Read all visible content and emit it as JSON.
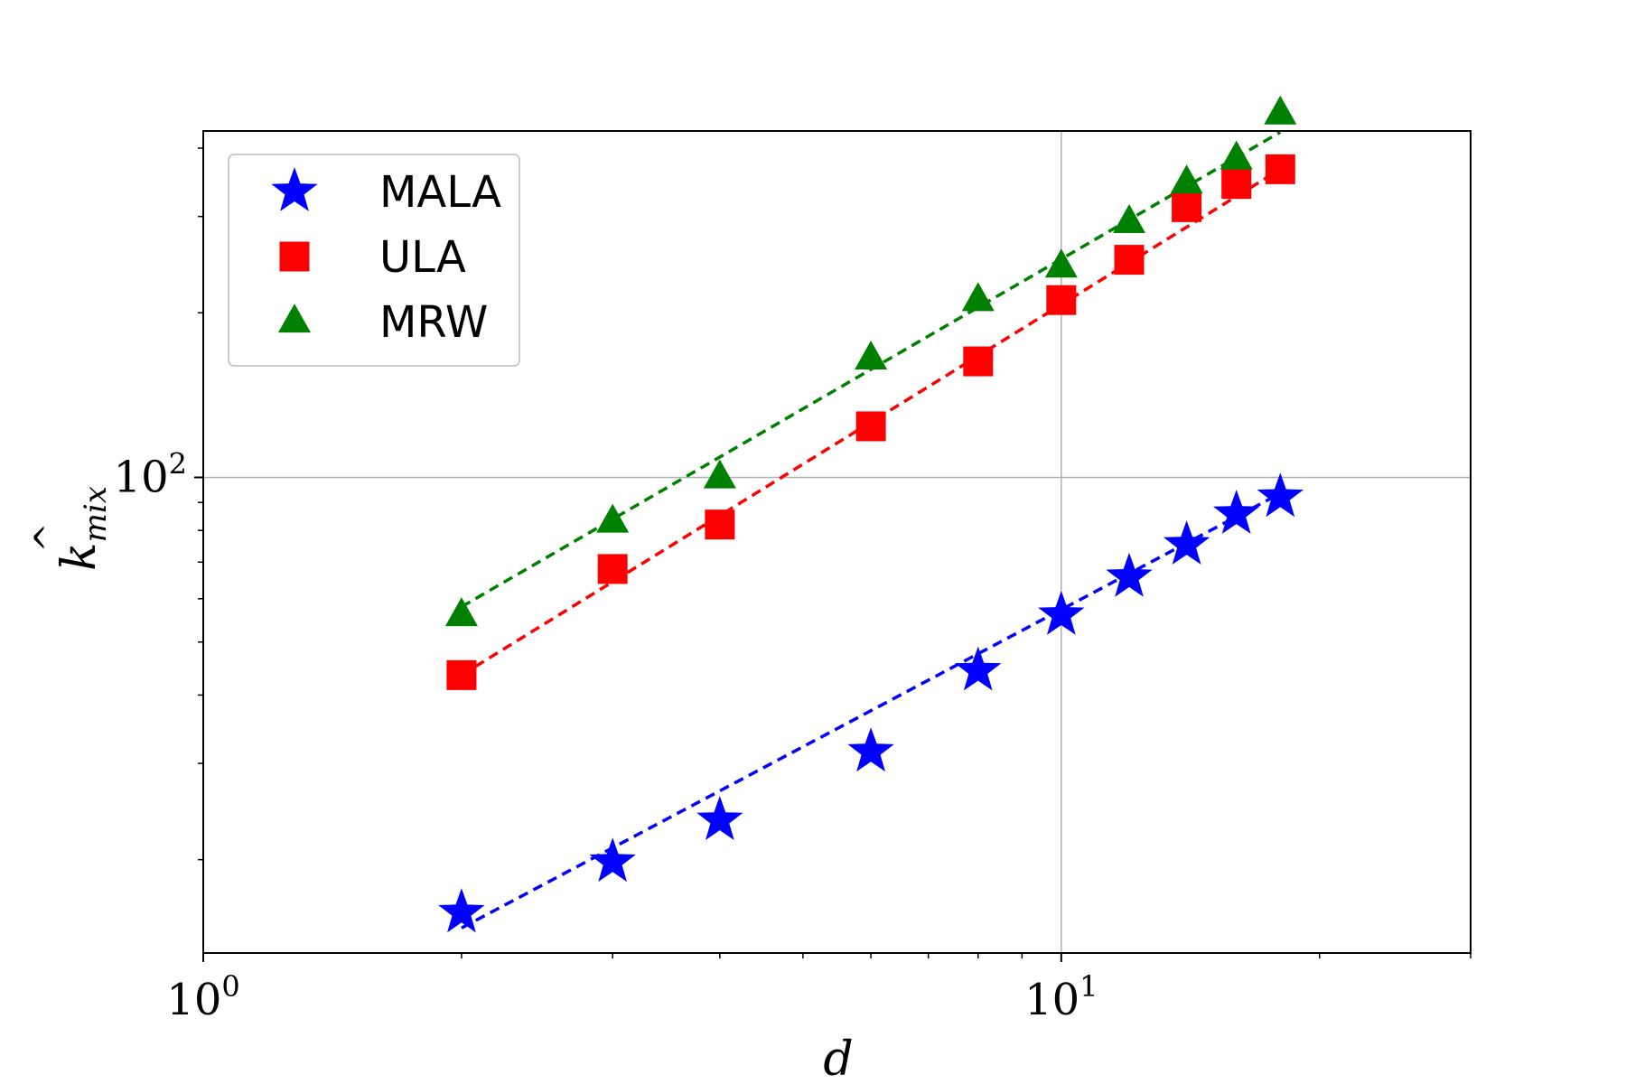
{
  "chart_data": {
    "type": "scatter",
    "x_scale": "log",
    "y_scale": "log",
    "xlim": [
      1,
      30
    ],
    "ylim": [
      13.5,
      430
    ],
    "xlabel": "d",
    "ylabel": "k̂_mix",
    "x_ticks": [
      {
        "value": 1,
        "mantissa": "10",
        "exp": "0"
      },
      {
        "value": 10,
        "mantissa": "10",
        "exp": "1"
      }
    ],
    "y_ticks": [
      {
        "value": 100,
        "mantissa": "10",
        "exp": "2"
      }
    ],
    "grid": true,
    "legend_position": "upper-left",
    "x": [
      2,
      3,
      4,
      6,
      8,
      10,
      12,
      14,
      16,
      18
    ],
    "series": [
      {
        "name": "MALA",
        "marker": "star",
        "color": "#0000ff",
        "values": [
          16.0,
          19.8,
          23.6,
          31.5,
          44.3,
          56.0,
          65.7,
          75.3,
          85.7,
          92.0
        ],
        "fit": [
          15.0,
          93.5
        ]
      },
      {
        "name": "ULA",
        "marker": "square",
        "color": "#ff0000",
        "values": [
          43.5,
          68.0,
          82.0,
          124.0,
          163.0,
          211.0,
          250.0,
          312.0,
          344.0,
          366.0
        ],
        "fit": [
          43.5,
          366.0
        ]
      },
      {
        "name": "MRW",
        "marker": "triangle",
        "color": "#008000",
        "values": [
          56.0,
          83.0,
          100.0,
          165.0,
          211.0,
          243.0,
          293.0,
          346.0,
          383.0,
          463.0
        ],
        "fit": [
          58.0,
          428.0
        ]
      }
    ]
  }
}
